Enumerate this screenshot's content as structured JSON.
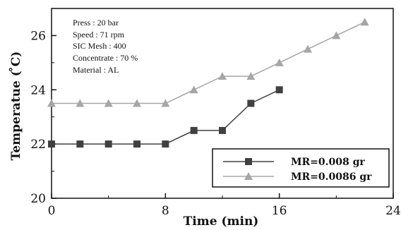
{
  "chart_data": {
    "type": "line",
    "xlabel": "Time (min)",
    "ylabel": "Temperatue ( ̊C)",
    "xlim": [
      0,
      24
    ],
    "ylim": [
      20,
      27
    ],
    "x_ticks": [
      "0",
      "8",
      "16",
      "24"
    ],
    "y_ticks": [
      "20",
      "22",
      "24",
      "26"
    ],
    "grid": false,
    "legend_position": "bottom-right",
    "annotations": [
      "Press : 20 bar",
      "Speed : 71 rpm",
      "SIC Mesh : 400",
      "Concentrate : 70 %",
      "Material : AL"
    ],
    "series": [
      {
        "name": "MR=0.008 gr",
        "marker": "square",
        "color": "#404040",
        "x": [
          0,
          2,
          4,
          6,
          8,
          10,
          12,
          14,
          16
        ],
        "y": [
          22,
          22,
          22,
          22,
          22,
          22.5,
          22.5,
          23.5,
          24
        ]
      },
      {
        "name": "MR=0.0086 gr",
        "marker": "triangle",
        "color": "#a6a6a6",
        "x": [
          0,
          2,
          4,
          6,
          8,
          10,
          12,
          14,
          16,
          18,
          20,
          22
        ],
        "y": [
          23.5,
          23.5,
          23.5,
          23.5,
          23.5,
          24,
          24.5,
          24.5,
          25,
          25.5,
          26,
          26.5
        ]
      }
    ]
  }
}
